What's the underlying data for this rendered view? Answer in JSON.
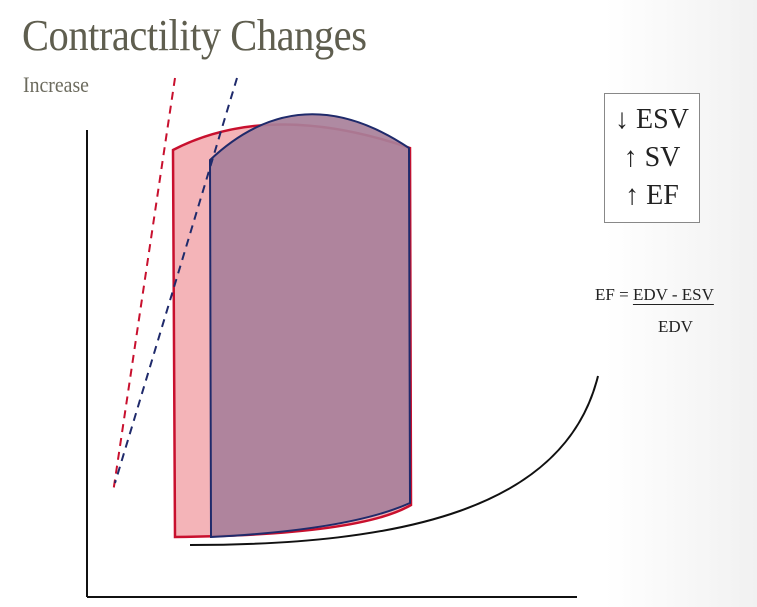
{
  "slide": {
    "title": "Contractility Changes",
    "subtitle": "Increase"
  },
  "effects_box": {
    "items": [
      "↓ ESV",
      "↑ SV",
      "↑ EF"
    ]
  },
  "formula": {
    "lhs": "EF = ",
    "numerator": "EDV - ESV",
    "denominator": "EDV"
  },
  "colors": {
    "baseline_loop_fill": "#f4b4b8",
    "baseline_loop_stroke": "#c8102e",
    "increased_loop_fill": "#a8809a",
    "increased_loop_stroke": "#1f2a6b",
    "title": "#5f5e4f"
  }
}
